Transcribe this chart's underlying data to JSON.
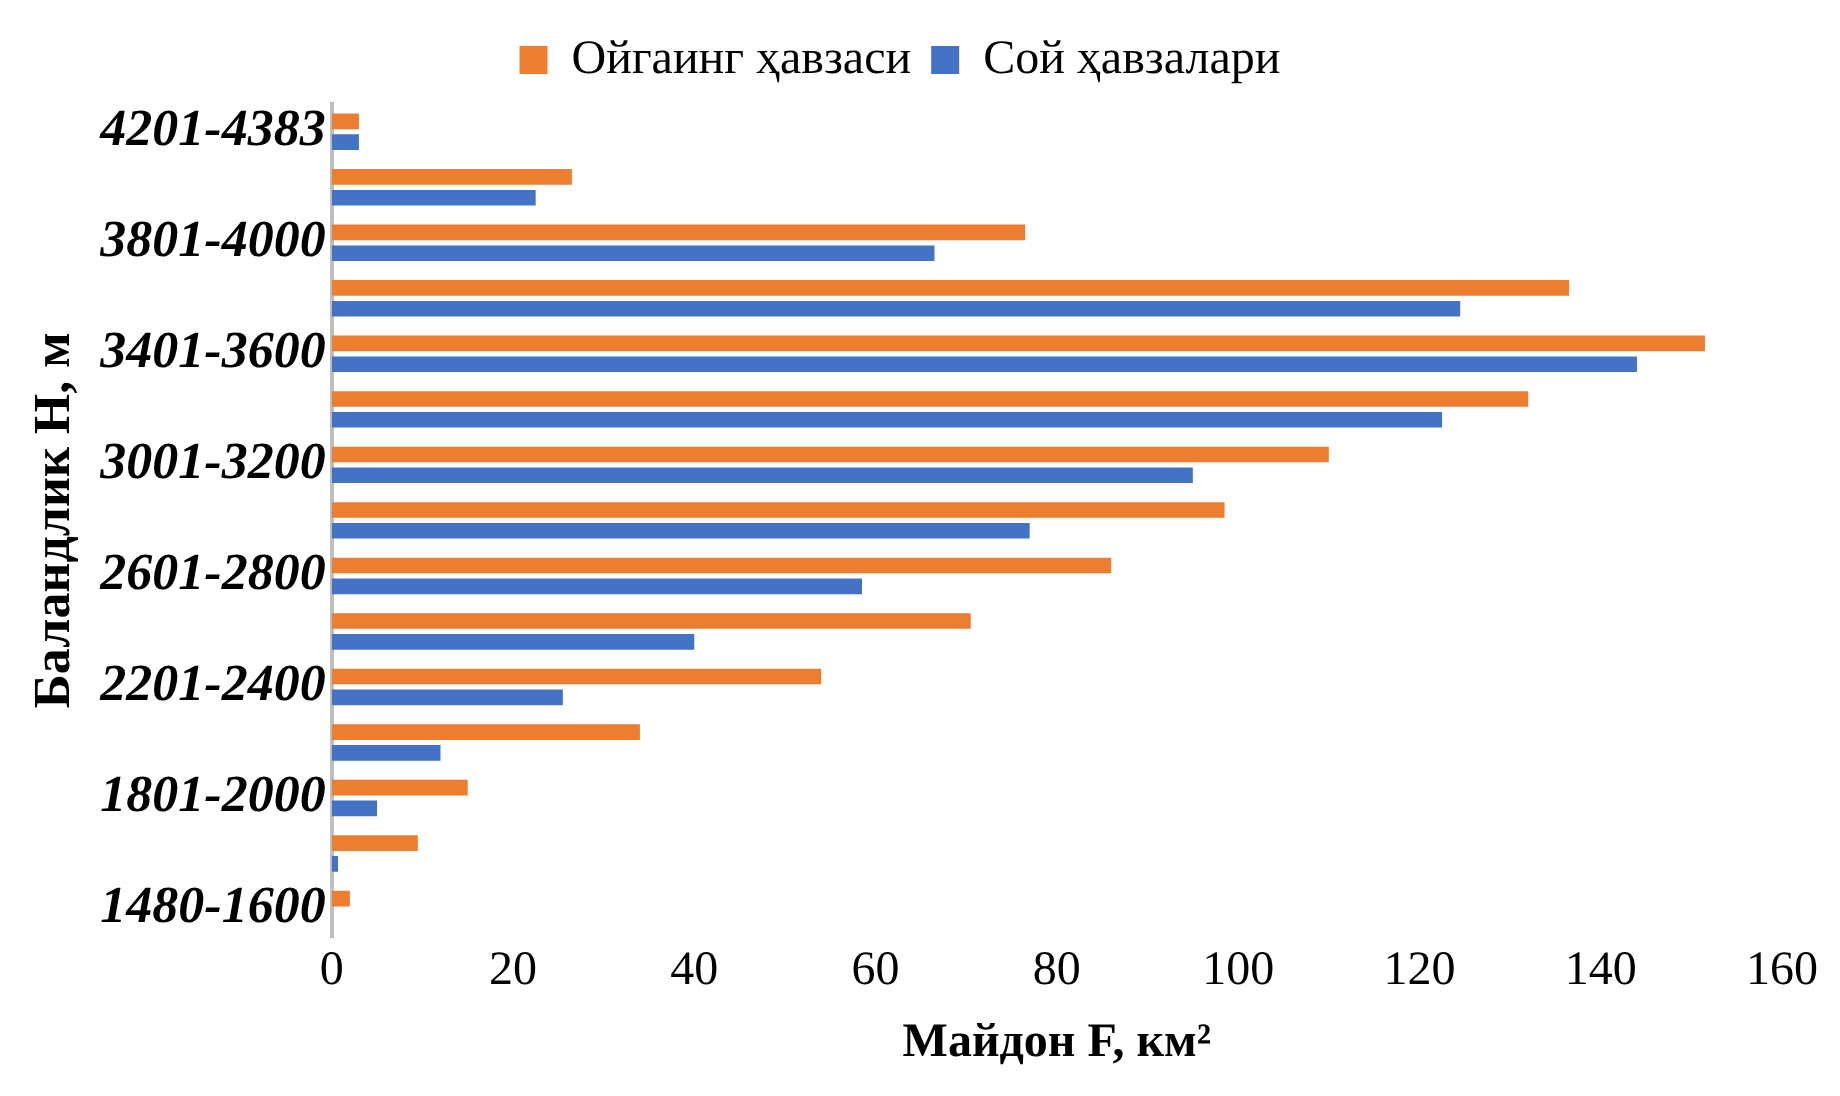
{
  "chart_data": {
    "type": "bar",
    "orientation": "horizontal",
    "xlabel": "Майдон F, км²",
    "ylabel": "Баландлик Н, м",
    "categories": [
      "4201-4383",
      null,
      "3801-4000",
      null,
      "3401-3600",
      null,
      "3001-3200",
      null,
      "2601-2800",
      null,
      "2201-2400",
      null,
      "1801-2000",
      null,
      "1480-1600"
    ],
    "series": [
      {
        "name": "Ойгаинг ҳавзаси",
        "color": "#ed7d31",
        "values": [
          3,
          26.5,
          76.5,
          136.5,
          151.5,
          132,
          110,
          98.5,
          86,
          70.5,
          54,
          34,
          15,
          9.5,
          2
        ]
      },
      {
        "name": "Сой ҳавзалари",
        "color": "#4472c4",
        "values": [
          3,
          22.5,
          66.5,
          124.5,
          144,
          122.5,
          95,
          77,
          58.5,
          40,
          25.5,
          12,
          5,
          0.7,
          0
        ]
      }
    ],
    "xlim": [
      0,
      160
    ],
    "xticks": [
      0,
      20,
      40,
      60,
      80,
      100,
      120,
      140,
      160
    ],
    "grid": false,
    "legend": "top"
  }
}
